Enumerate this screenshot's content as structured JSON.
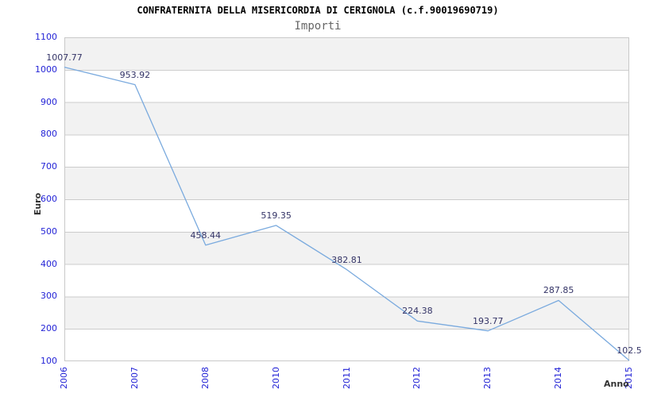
{
  "header": {
    "title": "CONFRATERNITA DELLA MISERICORDIA DI CERIGNOLA (c.f.90019690719)",
    "subtitle": "Importi"
  },
  "chart_data": {
    "type": "line",
    "title": "CONFRATERNITA DELLA MISERICORDIA DI CERIGNOLA (c.f.90019690719)",
    "subtitle": "Importi",
    "xlabel": "Anno",
    "ylabel": "Euro",
    "categories": [
      "2006",
      "2007",
      "2008",
      "2010",
      "2011",
      "2012",
      "2013",
      "2014",
      "2015"
    ],
    "values": [
      1007.77,
      953.92,
      458.44,
      519.35,
      382.81,
      224.38,
      193.77,
      287.85,
      102.5
    ],
    "value_labels": [
      "1007.77",
      "953.92",
      "458.44",
      "519.35",
      "382.81",
      "224.38",
      "193.77",
      "287.85",
      "102.5"
    ],
    "ylim": [
      100,
      1100
    ],
    "ytick_step": 100,
    "yticks": [
      100,
      200,
      300,
      400,
      500,
      600,
      700,
      800,
      900,
      1000,
      1100
    ],
    "grid": "horizontal gridlines with alternating gray/white bands",
    "legend": "none",
    "colors": {
      "line": "#7aaade",
      "tick_label": "#2424d6",
      "value_label": "#333366",
      "axis_title": "#333333",
      "title": "#000000",
      "subtitle": "#666666",
      "band": "#f2f2f2",
      "gridline": "#cccccc",
      "plot_border": "#c9c9c9",
      "background": "#ffffff"
    }
  }
}
